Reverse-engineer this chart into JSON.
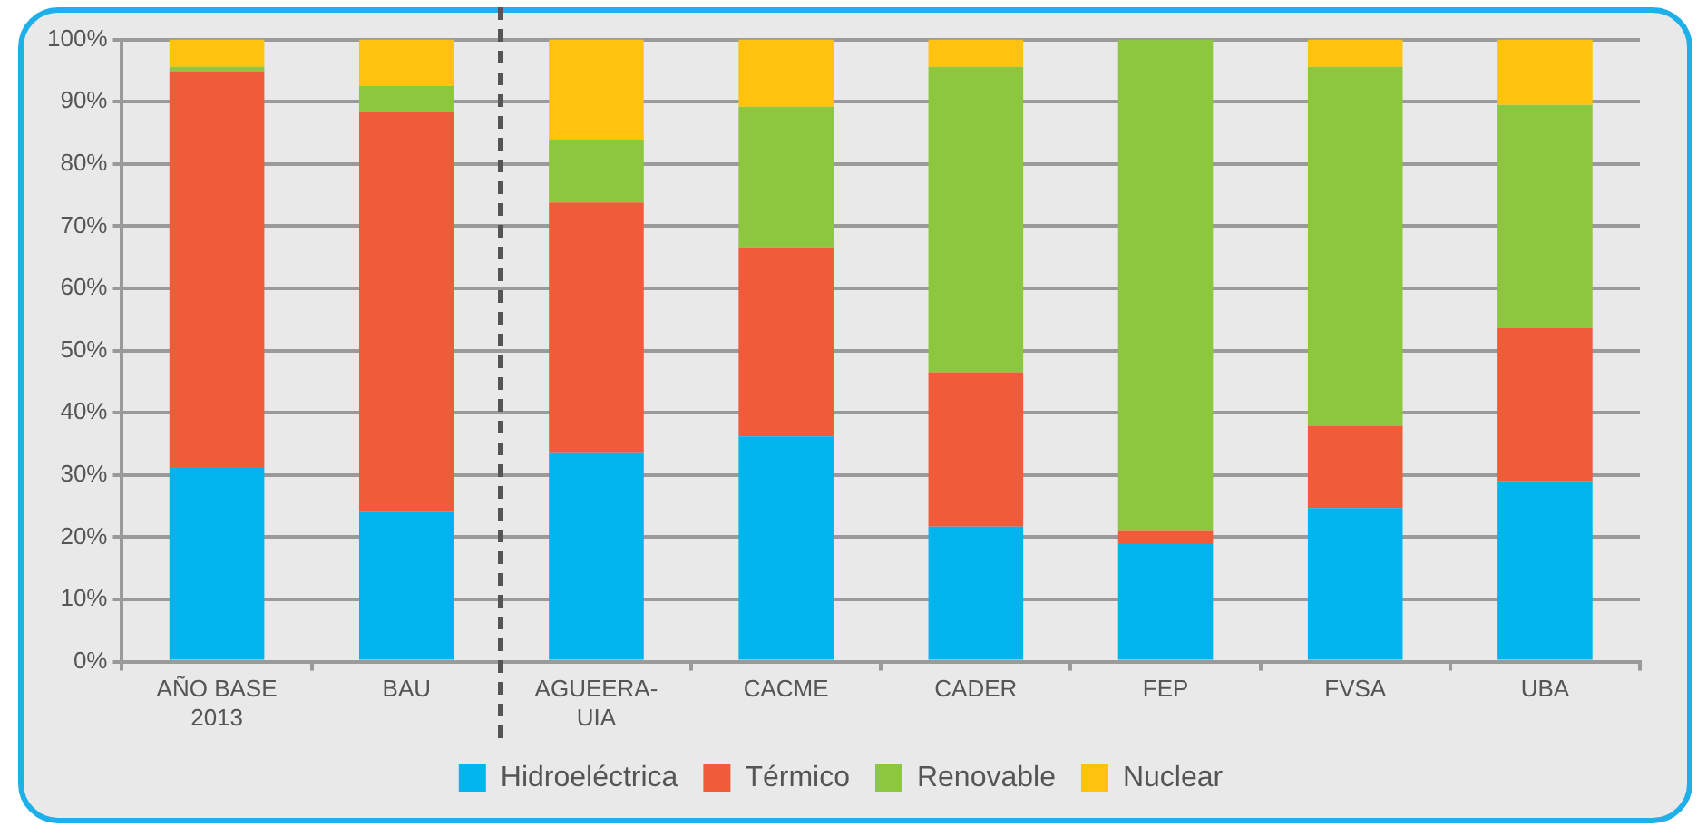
{
  "chart_data": {
    "type": "bar",
    "stacked": true,
    "categories": [
      "AÑO BASE 2013",
      "BAU",
      "AGUEERA-UIA",
      "CACME",
      "CADER",
      "FEP",
      "FVSA",
      "UBA"
    ],
    "series": [
      {
        "name": "Hidroeléctrica",
        "color": "#00b5ec",
        "values": [
          31.3,
          24.1,
          33.5,
          36.2,
          21.7,
          18.9,
          24.7,
          29.0
        ]
      },
      {
        "name": "Térmico",
        "color": "#f05c3a",
        "values": [
          63.6,
          64.2,
          40.3,
          30.4,
          24.8,
          2.1,
          13.2,
          24.6
        ]
      },
      {
        "name": "Renovable",
        "color": "#8dc63f",
        "values": [
          0.7,
          4.2,
          10.1,
          22.6,
          49.1,
          79.0,
          57.7,
          35.9
        ]
      },
      {
        "name": "Nuclear",
        "color": "#ffc20e",
        "values": [
          4.4,
          7.5,
          16.1,
          10.8,
          4.4,
          0,
          4.4,
          10.5
        ]
      }
    ],
    "ylim": [
      0,
      100
    ],
    "yticks": [
      {
        "value": 0,
        "label": "0%"
      },
      {
        "value": 10,
        "label": "10%"
      },
      {
        "value": 20,
        "label": "20%"
      },
      {
        "value": 30,
        "label": "30%"
      },
      {
        "value": 40,
        "label": "40%"
      },
      {
        "value": 50,
        "label": "50%"
      },
      {
        "value": 60,
        "label": "60%"
      },
      {
        "value": 70,
        "label": "70%"
      },
      {
        "value": 80,
        "label": "80%"
      },
      {
        "value": 90,
        "label": "90%"
      },
      {
        "value": 100,
        "label": "100%"
      }
    ],
    "grid": "y",
    "legend": "bottom"
  }
}
